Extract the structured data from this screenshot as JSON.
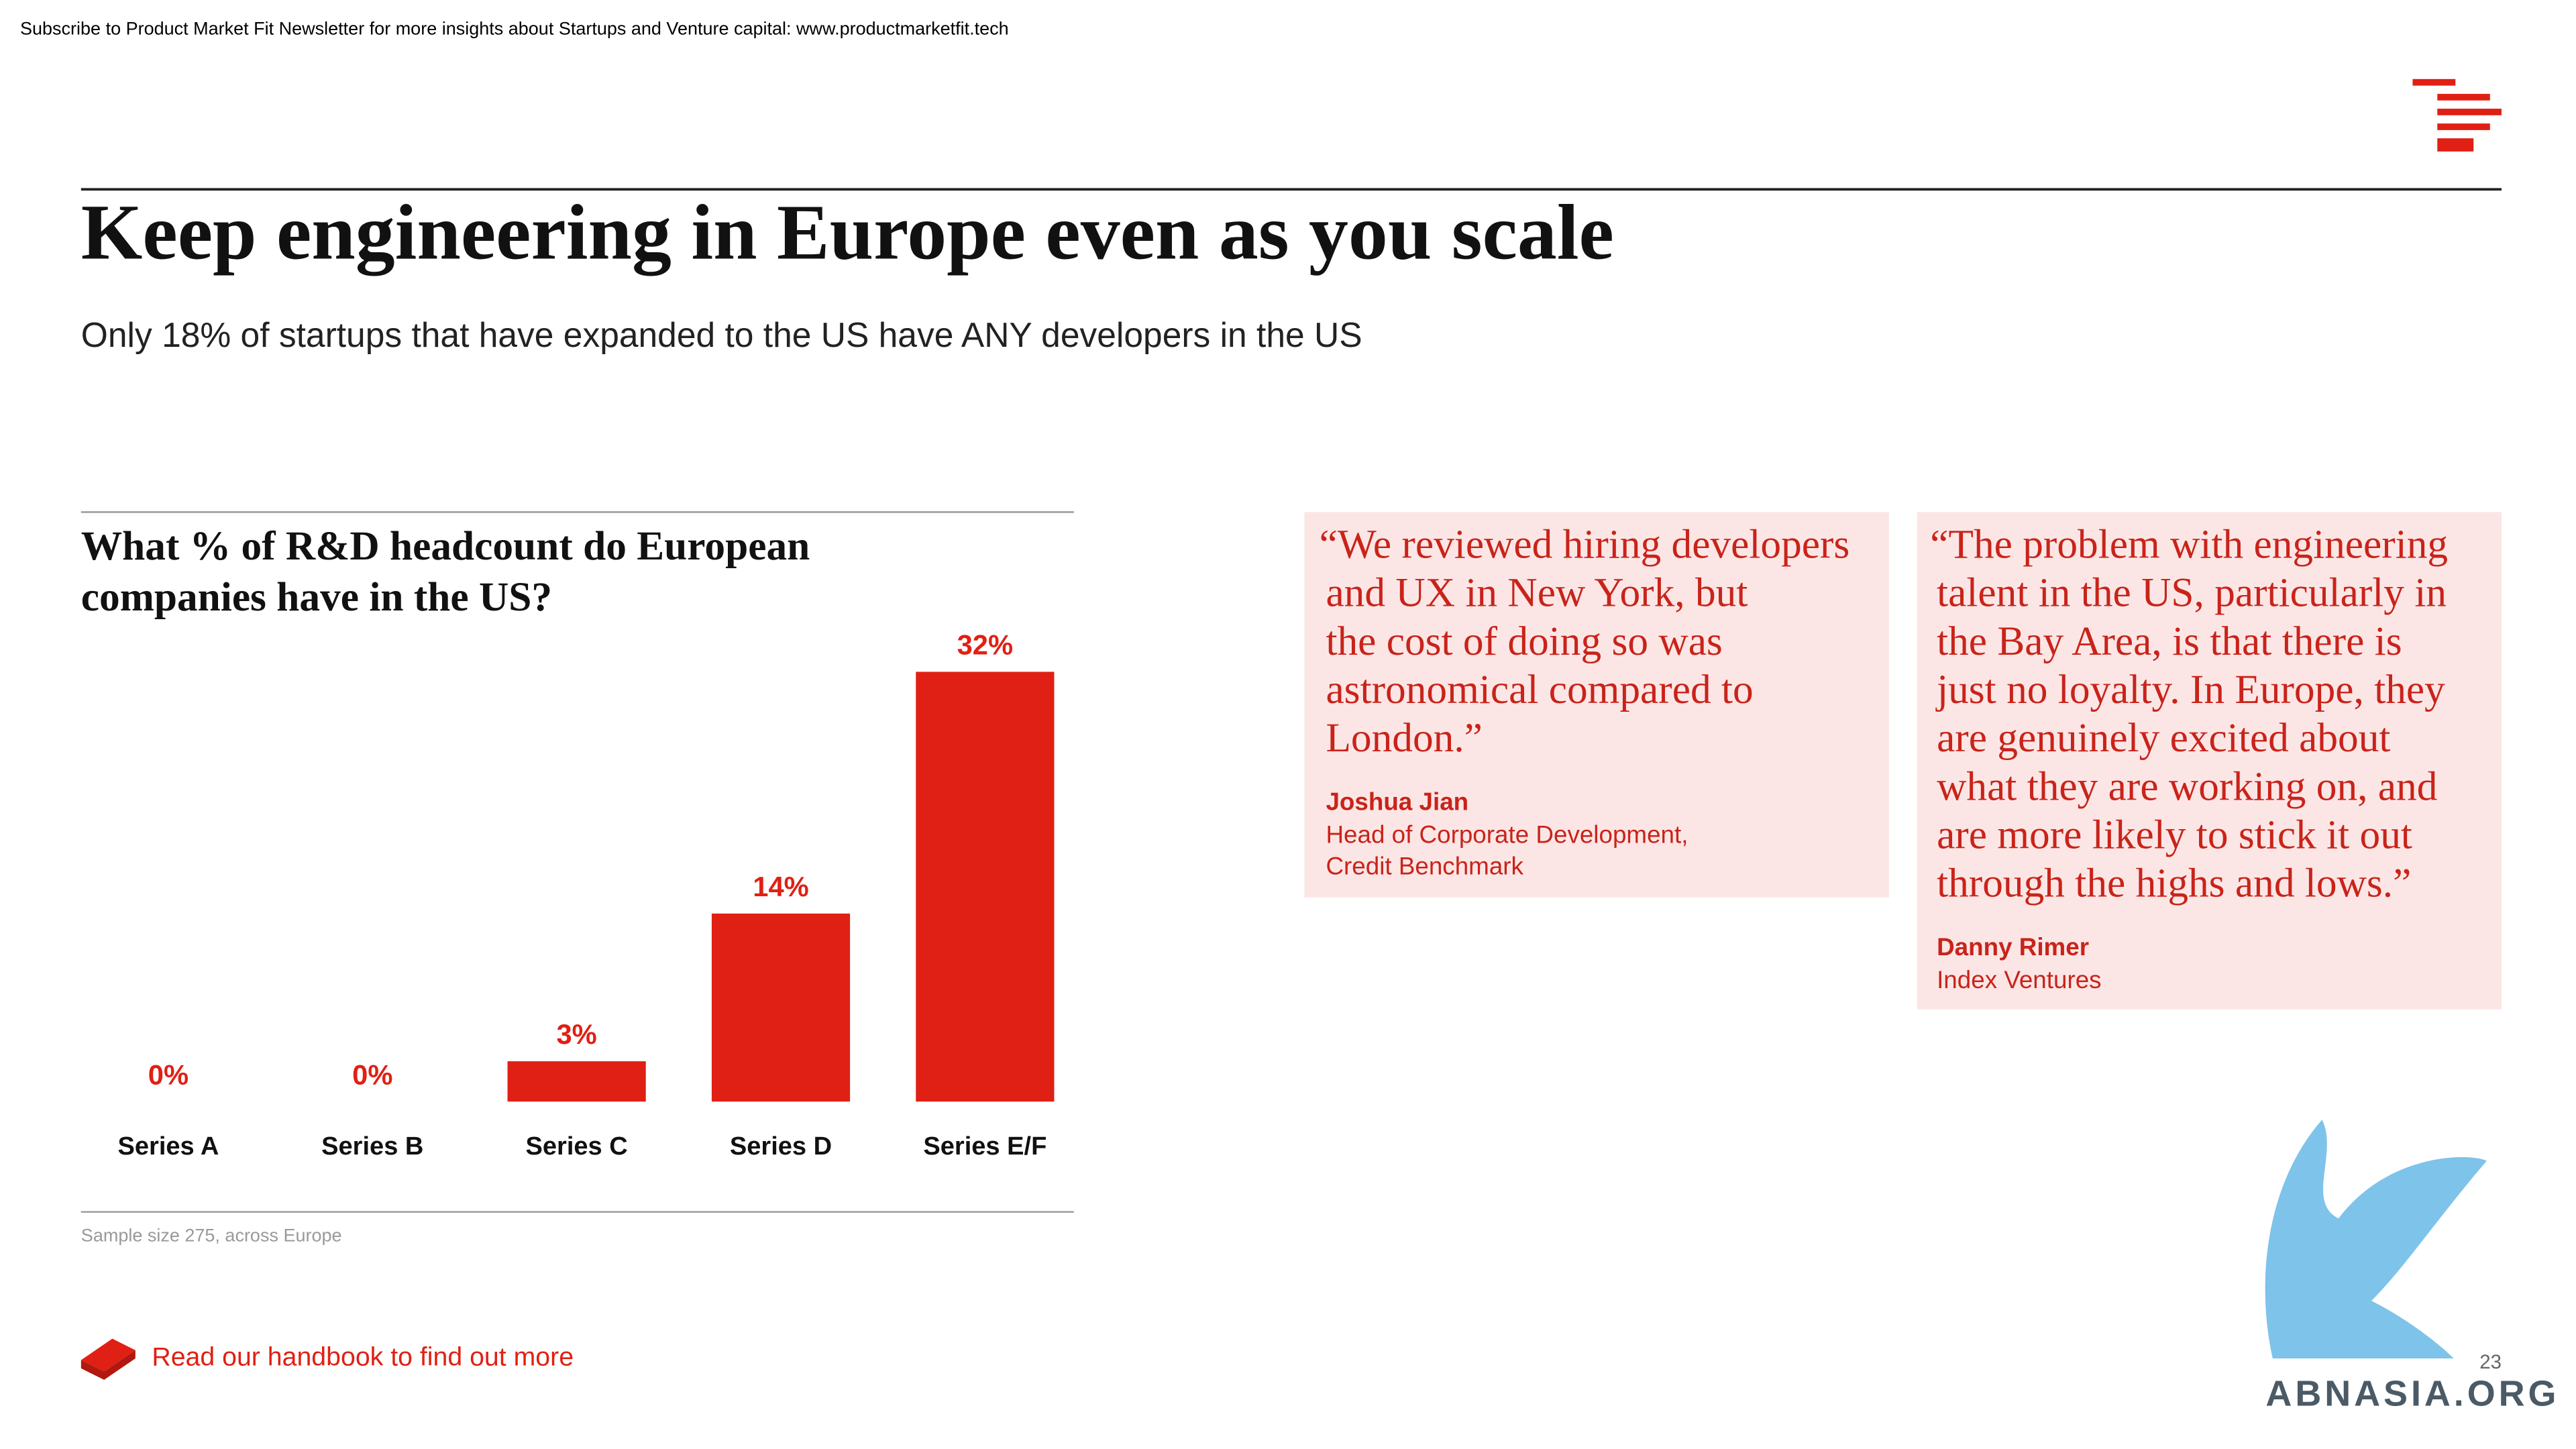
{
  "header": {
    "banner": "Subscribe to Product Market Fit Newsletter for more insights about Startups and Venture capital:  www.productmarketfit.tech",
    "title": "Keep engineering in Europe even as you scale",
    "subtitle": "Only 18% of startups that have expanded to the US have ANY developers in the US"
  },
  "chart_data": {
    "type": "bar",
    "title_lines": [
      "What % of R&D headcount do European",
      "companies have in the US?"
    ],
    "categories": [
      "Series A",
      "Series B",
      "Series C",
      "Series D",
      "Series E/F"
    ],
    "values": [
      0,
      0,
      3,
      14,
      32
    ],
    "value_labels": [
      "0%",
      "0%",
      "3%",
      "14%",
      "32%"
    ],
    "color": "#e02014",
    "note": "Sample size 275, across Europe"
  },
  "quotes": [
    {
      "lines": [
        "“We reviewed hiring developers",
        "and UX in New York, but",
        "the cost of doing so was",
        "astronomical compared to",
        "London.”"
      ],
      "name": "Joshua Jian",
      "role": [
        "Head of Corporate Development,",
        "Credit Benchmark"
      ]
    },
    {
      "lines": [
        "“The problem with engineering",
        "talent in the US, particularly in",
        "the Bay Area, is that there is",
        "just no loyalty. In Europe, they",
        "are genuinely excited about",
        "what they are working on, and",
        "are more likely to stick it out",
        "through the highs and lows.”"
      ],
      "name": "Danny Rimer",
      "role": [
        "Index Ventures"
      ]
    }
  ],
  "footer": {
    "link": "Read our handbook to find out more",
    "page_number": "23",
    "watermark": "ABNASIA.ORG"
  }
}
